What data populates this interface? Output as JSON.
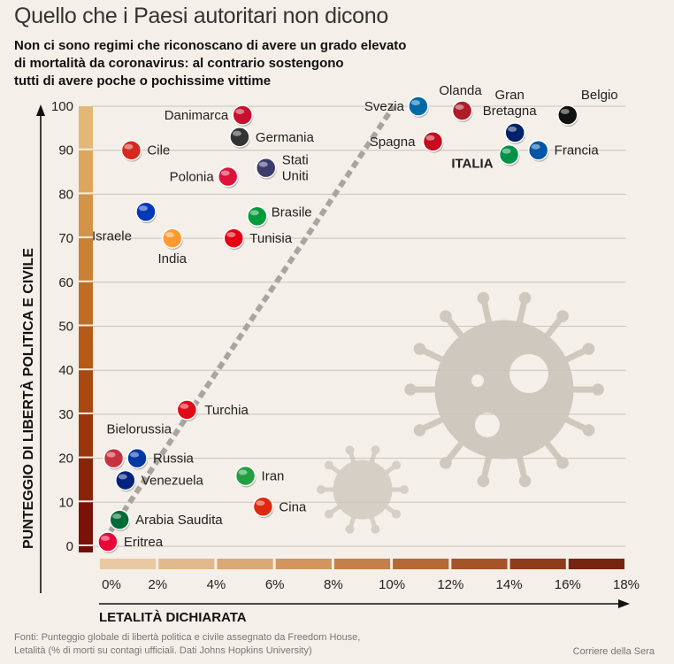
{
  "title": "Quello che i Paesi autoritari non dicono",
  "subtitle": "Non ci sono regimi che riconoscano di avere un grado elevato\ndi mortalità da coronavirus: al contrario sostengono\ntutti di avere poche o pochissime vittime",
  "source": "Fonti: Punteggio globale di libertà politica e civile assegnato da Freedom House,\nLetalità (% di morti su contagi ufficiali. Dati Johns Hopkins University)",
  "credit": "Corriere della Sera",
  "chart_data": {
    "type": "scatter",
    "xlabel": "LETALITÀ DICHIARATA",
    "ylabel": "PUNTEGGIO DI LIBERTÀ POLITICA E CIVILE",
    "xlim": [
      0,
      18
    ],
    "ylim": [
      0,
      100
    ],
    "x_ticks": [
      "0%",
      "2%",
      "4%",
      "6%",
      "8%",
      "10%",
      "12%",
      "14%",
      "16%",
      "18%"
    ],
    "y_ticks": [
      "0",
      "10",
      "20",
      "30",
      "40",
      "50",
      "60",
      "70",
      "80",
      "90",
      "100"
    ],
    "grid": true,
    "points": [
      {
        "label": "Danimarca",
        "x": 4.9,
        "y": 98,
        "color": "#c8102e"
      },
      {
        "label": "Germania",
        "x": 4.8,
        "y": 93,
        "color": "#333333"
      },
      {
        "label": "Cile",
        "x": 1.1,
        "y": 90,
        "color": "#d52b1e"
      },
      {
        "label": "Stati Uniti",
        "x": 5.7,
        "y": 86,
        "color": "#3c3b6e"
      },
      {
        "label": "Polonia",
        "x": 4.4,
        "y": 84,
        "color": "#dc143c"
      },
      {
        "label": "Israele",
        "x": 1.6,
        "y": 76,
        "color": "#0038b8"
      },
      {
        "label": "Brasile",
        "x": 5.4,
        "y": 75,
        "color": "#009c3b"
      },
      {
        "label": "India",
        "x": 2.5,
        "y": 70,
        "color": "#ff9933"
      },
      {
        "label": "Tunisia",
        "x": 4.6,
        "y": 70,
        "color": "#e70013"
      },
      {
        "label": "Svezia",
        "x": 10.9,
        "y": 100,
        "color": "#006aa7"
      },
      {
        "label": "Olanda",
        "x": 12.4,
        "y": 99,
        "color": "#ae1c28"
      },
      {
        "label": "Gran Bretagna",
        "x": 14.2,
        "y": 94,
        "color": "#012169"
      },
      {
        "label": "Belgio",
        "x": 16.0,
        "y": 98,
        "color": "#111111"
      },
      {
        "label": "Spagna",
        "x": 11.4,
        "y": 92,
        "color": "#c60b1e"
      },
      {
        "label": "ITALIA",
        "x": 14.0,
        "y": 89,
        "color": "#009246"
      },
      {
        "label": "Francia",
        "x": 15.0,
        "y": 90,
        "color": "#0055a4"
      },
      {
        "label": "Turchia",
        "x": 3.0,
        "y": 31,
        "color": "#e30a17"
      },
      {
        "label": "Bielorussia",
        "x": 0.5,
        "y": 20,
        "color": "#c8313e"
      },
      {
        "label": "Russia",
        "x": 1.3,
        "y": 20,
        "color": "#0039a6"
      },
      {
        "label": "Venezuela",
        "x": 0.9,
        "y": 15,
        "color": "#00247d"
      },
      {
        "label": "Iran",
        "x": 5.0,
        "y": 16,
        "color": "#239f40"
      },
      {
        "label": "Cina",
        "x": 5.6,
        "y": 9,
        "color": "#de2910"
      },
      {
        "label": "Arabia Saudita",
        "x": 0.7,
        "y": 6,
        "color": "#006c35"
      },
      {
        "label": "Eritrea",
        "x": 0.3,
        "y": 1,
        "color": "#ea0437"
      }
    ]
  }
}
